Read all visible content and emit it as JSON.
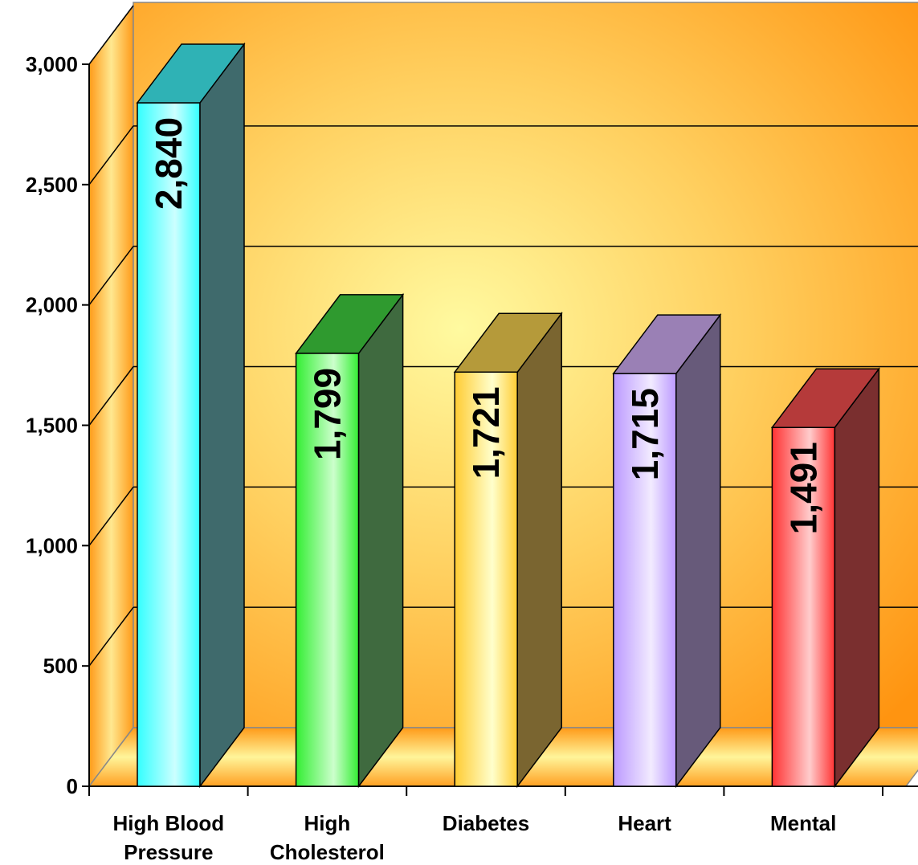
{
  "chart_data": {
    "type": "bar",
    "categories": [
      [
        "High Blood",
        "Pressure"
      ],
      [
        "High",
        "Cholesterol"
      ],
      [
        "Diabetes"
      ],
      [
        "Heart"
      ],
      [
        "Mental"
      ]
    ],
    "values": [
      2840,
      1799,
      1721,
      1715,
      1491
    ],
    "value_labels": [
      "2,840",
      "1,799",
      "1,721",
      "1,715",
      "1,491"
    ],
    "ylim": [
      0,
      3000
    ],
    "yticks": [
      {
        "value": 0,
        "label": "0"
      },
      {
        "value": 500,
        "label": "500"
      },
      {
        "value": 1000,
        "label": "1,000"
      },
      {
        "value": 1500,
        "label": "1,500"
      },
      {
        "value": 2000,
        "label": "2,000"
      },
      {
        "value": 2500,
        "label": "2,500"
      },
      {
        "value": 3000,
        "label": "3,000"
      }
    ],
    "grid": true,
    "style": "3d",
    "bar_colors": [
      {
        "light": "#ccffff",
        "mid": "#33ffff",
        "top": "#2fb2b5",
        "side": "#3f6a6c"
      },
      {
        "light": "#ccffcc",
        "mid": "#33ee33",
        "top": "#2f9a2f",
        "side": "#3f6a3f"
      },
      {
        "light": "#ffffcc",
        "mid": "#ffcc33",
        "top": "#b59a3a",
        "side": "#7a6530"
      },
      {
        "light": "#f2ebff",
        "mid": "#bb99ff",
        "top": "#9a80b5",
        "side": "#675a7a"
      },
      {
        "light": "#ffcccc",
        "mid": "#ff3333",
        "top": "#b53a3a",
        "side": "#7a2f2f"
      }
    ]
  }
}
